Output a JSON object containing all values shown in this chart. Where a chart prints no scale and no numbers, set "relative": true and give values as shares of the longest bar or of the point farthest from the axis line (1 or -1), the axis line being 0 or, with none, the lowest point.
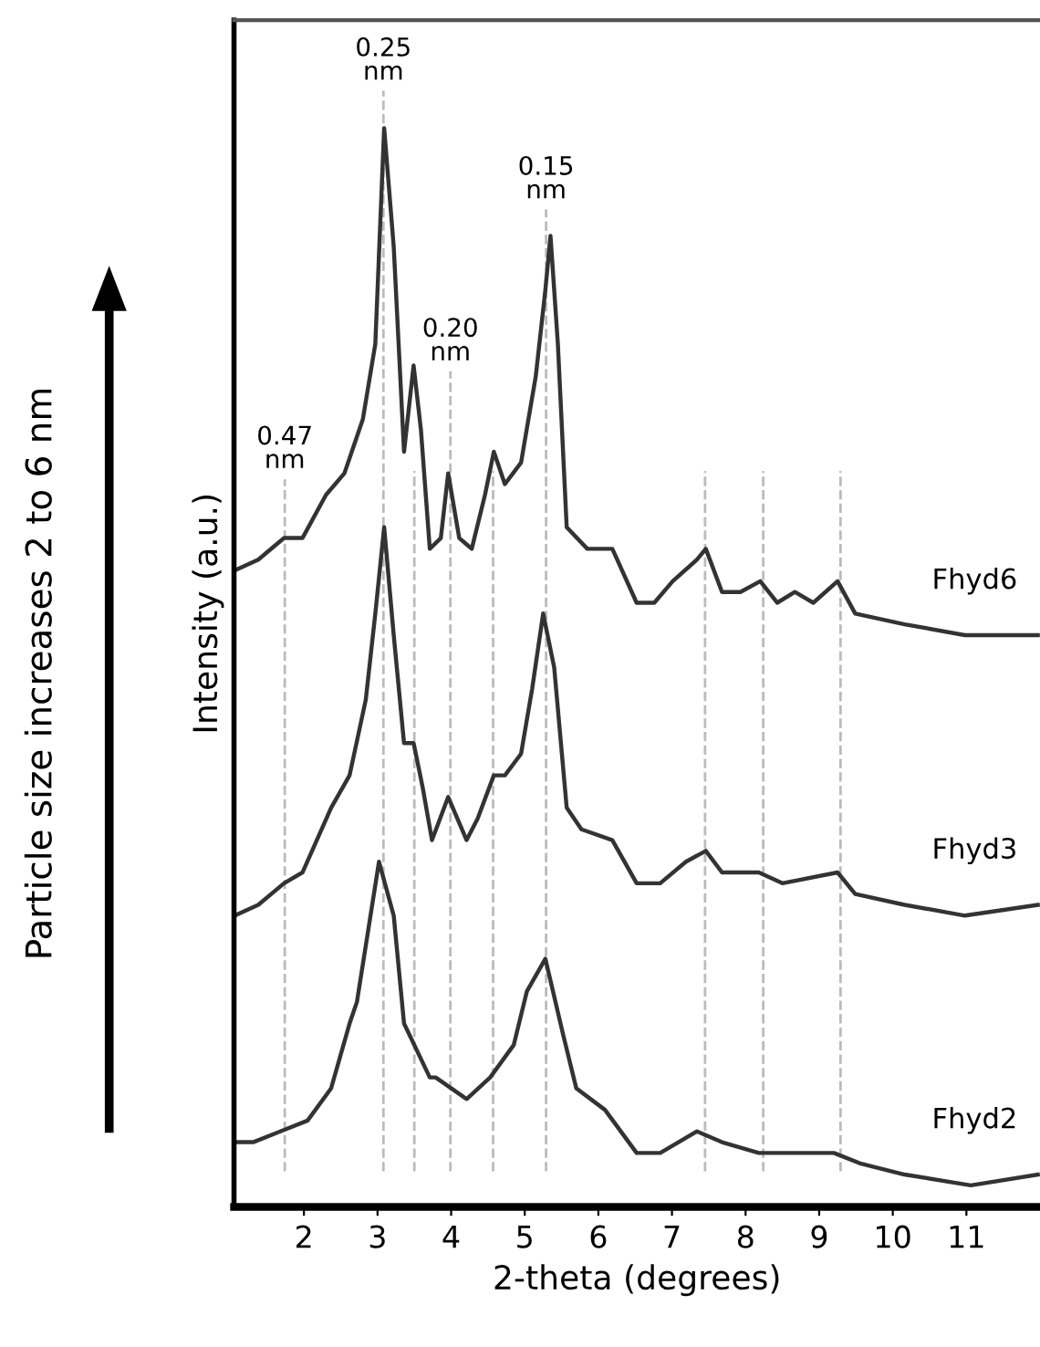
{
  "chart_data": {
    "type": "line",
    "relative": true,
    "xlabel": "2-theta (degrees)",
    "ylabel": "Intensity (a.u.)",
    "xlim": [
      1.05,
      12.0
    ],
    "xticks": [
      2,
      3,
      4,
      5,
      6,
      7,
      8,
      9,
      10,
      11
    ],
    "grid": false,
    "marker": "none",
    "line_style": "solid",
    "series": [
      {
        "name": "Fhyd6",
        "color": "#333333",
        "x": [
          1.06,
          1.38,
          1.73,
          1.98,
          2.3,
          2.55,
          2.8,
          2.97,
          3.09,
          3.22,
          3.36,
          3.49,
          3.59,
          3.71,
          3.86,
          3.96,
          4.11,
          4.28,
          4.46,
          4.58,
          4.73,
          4.95,
          5.15,
          5.28,
          5.35,
          5.45,
          5.57,
          5.85,
          6.19,
          6.52,
          6.76,
          7.01,
          7.34,
          7.46,
          7.68,
          7.93,
          8.2,
          8.43,
          8.67,
          8.92,
          9.25,
          9.49,
          10.16,
          10.98,
          11.97
        ],
        "values": [
          0.59,
          0.6,
          0.62,
          0.62,
          0.66,
          0.68,
          0.73,
          0.8,
          1.0,
          0.89,
          0.7,
          0.78,
          0.72,
          0.61,
          0.62,
          0.68,
          0.62,
          0.61,
          0.66,
          0.7,
          0.67,
          0.69,
          0.77,
          0.85,
          0.9,
          0.8,
          0.63,
          0.61,
          0.61,
          0.56,
          0.56,
          0.58,
          0.6,
          0.61,
          0.57,
          0.57,
          0.58,
          0.56,
          0.57,
          0.56,
          0.58,
          0.55,
          0.54,
          0.53,
          0.53
        ]
      },
      {
        "name": "Fhyd3",
        "color": "#333333",
        "x": [
          1.06,
          1.38,
          1.73,
          1.98,
          2.37,
          2.62,
          2.84,
          2.97,
          3.09,
          3.22,
          3.36,
          3.49,
          3.61,
          3.74,
          3.96,
          4.21,
          4.36,
          4.58,
          4.73,
          4.95,
          5.1,
          5.25,
          5.4,
          5.57,
          5.77,
          6.19,
          6.52,
          6.84,
          7.19,
          7.46,
          7.68,
          8.18,
          8.5,
          9.25,
          9.49,
          10.16,
          10.98,
          11.97
        ],
        "values": [
          0.27,
          0.28,
          0.3,
          0.31,
          0.37,
          0.4,
          0.47,
          0.55,
          0.63,
          0.53,
          0.43,
          0.43,
          0.39,
          0.34,
          0.38,
          0.34,
          0.36,
          0.4,
          0.4,
          0.42,
          0.48,
          0.55,
          0.5,
          0.37,
          0.35,
          0.34,
          0.3,
          0.3,
          0.32,
          0.33,
          0.31,
          0.31,
          0.3,
          0.31,
          0.29,
          0.28,
          0.27,
          0.28
        ]
      },
      {
        "name": "Fhyd2",
        "color": "#333333",
        "x": [
          1.06,
          1.31,
          1.68,
          2.05,
          2.37,
          2.62,
          2.72,
          3.02,
          3.22,
          3.36,
          3.71,
          3.79,
          4.21,
          4.53,
          4.85,
          5.03,
          5.28,
          5.52,
          5.7,
          6.09,
          6.52,
          6.84,
          7.34,
          7.68,
          8.18,
          8.75,
          9.2,
          9.57,
          10.16,
          11.06,
          11.97
        ],
        "values": [
          0.06,
          0.06,
          0.07,
          0.08,
          0.11,
          0.17,
          0.19,
          0.32,
          0.27,
          0.17,
          0.12,
          0.12,
          0.1,
          0.12,
          0.15,
          0.2,
          0.23,
          0.16,
          0.11,
          0.09,
          0.05,
          0.05,
          0.07,
          0.06,
          0.05,
          0.05,
          0.05,
          0.04,
          0.03,
          0.02,
          0.03
        ]
      }
    ],
    "ref_lines": [
      {
        "axis": "x",
        "value": 1.74,
        "color": "#bbbbbb",
        "line_style": "dashed"
      },
      {
        "axis": "x",
        "value": 3.08,
        "color": "#bbbbbb",
        "line_style": "dashed"
      },
      {
        "axis": "x",
        "value": 3.5,
        "color": "#bbbbbb",
        "line_style": "dashed"
      },
      {
        "axis": "x",
        "value": 3.99,
        "color": "#bbbbbb",
        "line_style": "dashed"
      },
      {
        "axis": "x",
        "value": 4.57,
        "color": "#bbbbbb",
        "line_style": "dashed"
      },
      {
        "axis": "x",
        "value": 5.29,
        "color": "#bbbbbb",
        "line_style": "dashed"
      },
      {
        "axis": "x",
        "value": 7.45,
        "color": "#bbbbbb",
        "line_style": "dashed"
      },
      {
        "axis": "x",
        "value": 8.24,
        "color": "#bbbbbb",
        "line_style": "dashed"
      },
      {
        "axis": "x",
        "value": 9.29,
        "color": "#bbbbbb",
        "line_style": "dashed"
      }
    ],
    "annotations": [
      {
        "text": "0.47\nnm",
        "x": 1.74,
        "y": 0.68
      },
      {
        "text": "0.25\nnm",
        "x": 3.08,
        "y": 1.04
      },
      {
        "text": "0.20\nnm",
        "x": 3.99,
        "y": 0.78
      },
      {
        "text": "0.15\nnm",
        "x": 5.29,
        "y": 0.93
      },
      "Particle size increases 2 to 6 nm"
    ]
  }
}
